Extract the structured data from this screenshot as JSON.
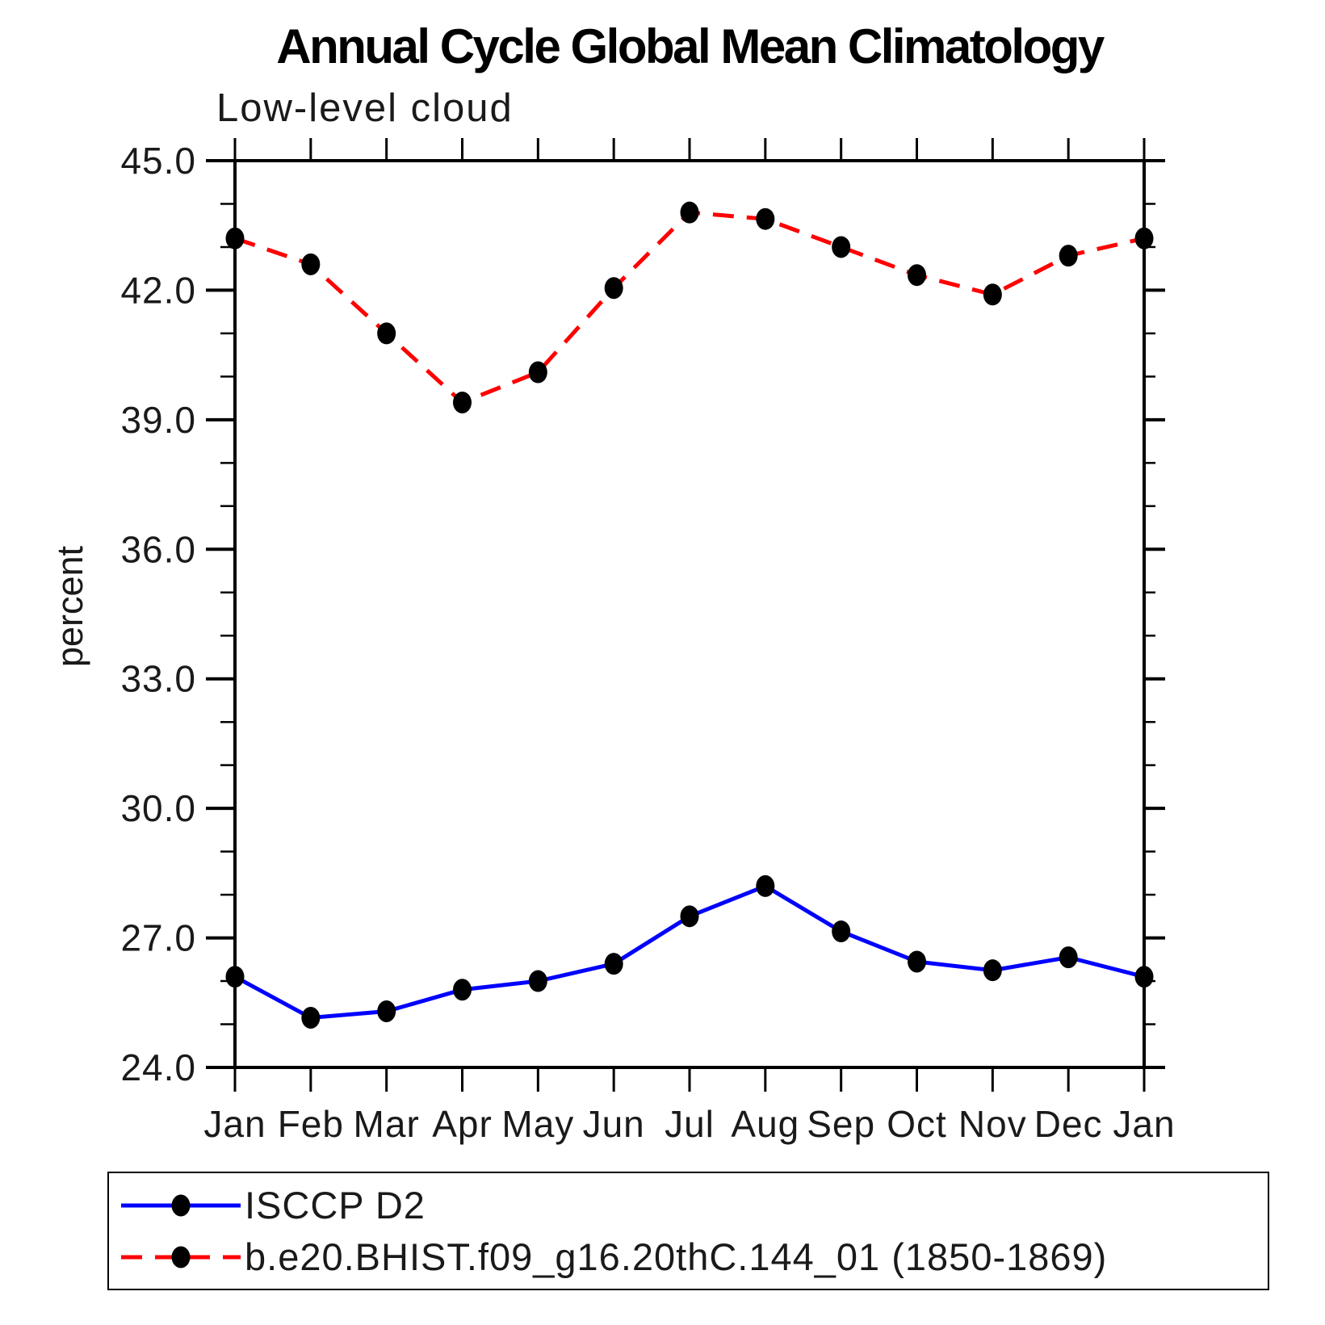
{
  "chart_data": {
    "type": "line",
    "title": "Annual Cycle Global Mean Climatology",
    "subtitle": "Low-level cloud",
    "ylabel": "percent",
    "categories": [
      "Jan",
      "Feb",
      "Mar",
      "Apr",
      "May",
      "Jun",
      "Jul",
      "Aug",
      "Sep",
      "Oct",
      "Nov",
      "Dec",
      "Jan"
    ],
    "ylim": [
      24.0,
      45.0
    ],
    "yticks_major": [
      24,
      27,
      30,
      33,
      36,
      39,
      42,
      45
    ],
    "ytick_labels": [
      "24.0",
      "27.0",
      "30.0",
      "33.0",
      "36.0",
      "39.0",
      "42.0",
      "45.0"
    ],
    "minor_tick_step": 1.0,
    "grid": false,
    "legend_position": "bottom-left-box",
    "marker_color": "#000000",
    "axis_color": "#000000",
    "series": [
      {
        "name": "ISCCP D2",
        "color": "#0000ff",
        "line_style": "solid",
        "marker": "filled-circle",
        "values": [
          26.1,
          25.15,
          25.3,
          25.8,
          26.0,
          26.4,
          27.5,
          28.2,
          27.15,
          26.45,
          26.25,
          26.55,
          26.1
        ]
      },
      {
        "name": "b.e20.BHIST.f09_g16.20thC.144_01 (1850-1869)",
        "color": "#ff0000",
        "line_style": "dashed",
        "marker": "filled-circle",
        "values": [
          43.2,
          42.6,
          41.0,
          39.4,
          40.1,
          42.05,
          43.8,
          43.65,
          43.0,
          42.35,
          41.9,
          42.8,
          43.2
        ]
      }
    ]
  }
}
